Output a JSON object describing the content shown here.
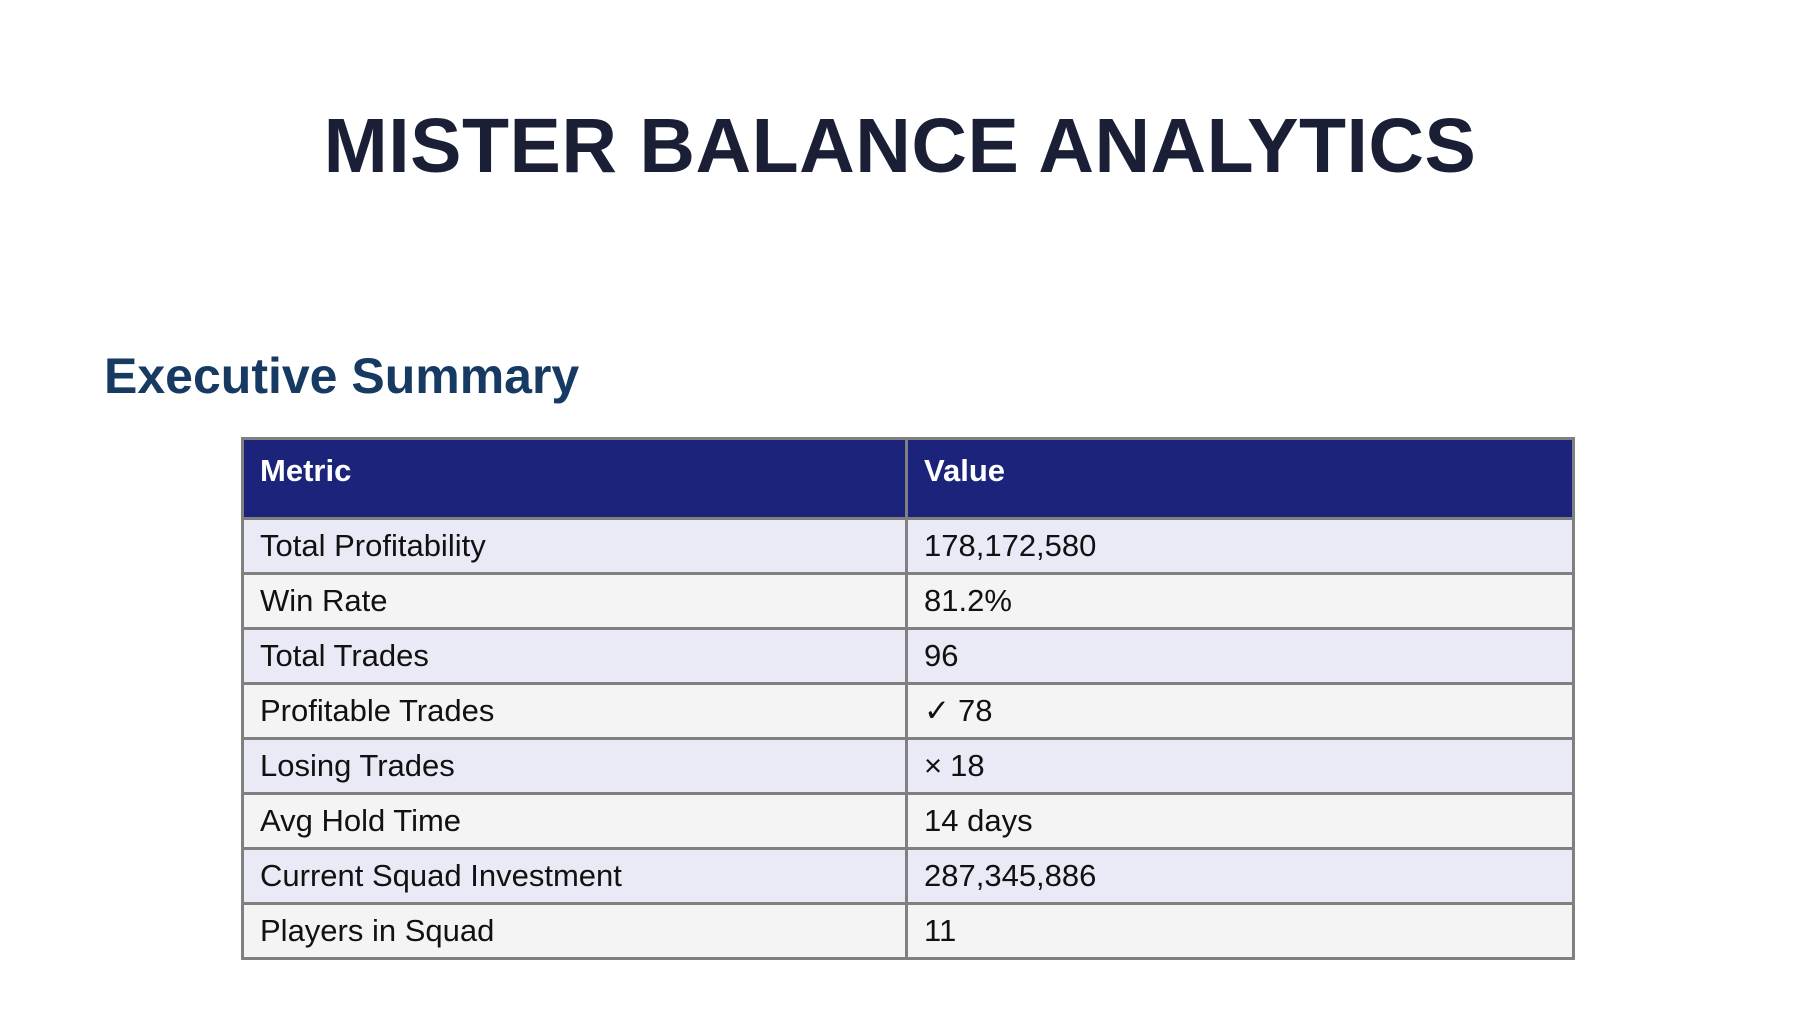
{
  "report": {
    "title": "MISTER BALANCE ANALYTICS"
  },
  "section": {
    "heading": "Executive Summary"
  },
  "table": {
    "headers": [
      "Metric",
      "Value"
    ],
    "rows": [
      {
        "metric": "Total Profitability",
        "mark": "",
        "value": "178,172,580"
      },
      {
        "metric": "Win Rate",
        "mark": "",
        "value": "81.2%"
      },
      {
        "metric": "Total Trades",
        "mark": "",
        "value": "96"
      },
      {
        "metric": "Profitable Trades",
        "mark": "✓",
        "value": "78"
      },
      {
        "metric": "Losing Trades",
        "mark": "×",
        "value": "18"
      },
      {
        "metric": "Avg Hold Time",
        "mark": "",
        "value": "14 days"
      },
      {
        "metric": "Current Squad Investment",
        "mark": "",
        "value": "287,345,886"
      },
      {
        "metric": "Players in Squad",
        "mark": "",
        "value": "11"
      }
    ]
  }
}
